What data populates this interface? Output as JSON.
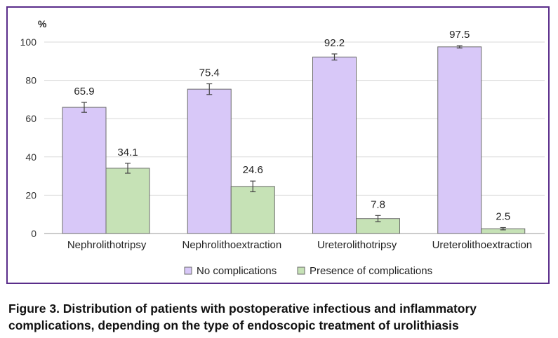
{
  "chart_data": {
    "type": "bar",
    "ylabel": "%",
    "ylim": [
      0,
      100
    ],
    "yticks": [
      0,
      20,
      40,
      60,
      80,
      100
    ],
    "grid": true,
    "legend_position": "bottom",
    "categories": [
      "Nephrolithotripsy",
      "Nephrolithoextraction",
      "Ureterolithotripsy",
      "Ureterolithoextraction"
    ],
    "series": [
      {
        "name": "No complications",
        "color": "#d8c8f8",
        "values": [
          65.9,
          75.4,
          92.2,
          97.5
        ],
        "errors": [
          2.6,
          2.8,
          1.6,
          0.6
        ],
        "labels": [
          "65.9",
          "75.4",
          "92.2",
          "97.5"
        ]
      },
      {
        "name": "Presence of complications",
        "color": "#c6e2b6",
        "values": [
          34.1,
          24.6,
          7.8,
          2.5
        ],
        "errors": [
          2.6,
          2.8,
          1.6,
          0.6
        ],
        "labels": [
          "34.1",
          "24.6",
          "7.8",
          "2.5"
        ]
      }
    ]
  },
  "caption": "Figure 3. Distribution of patients with postoperative infectious and inflammatory complications, depending on the type of endoscopic treatment of urolithiasis"
}
